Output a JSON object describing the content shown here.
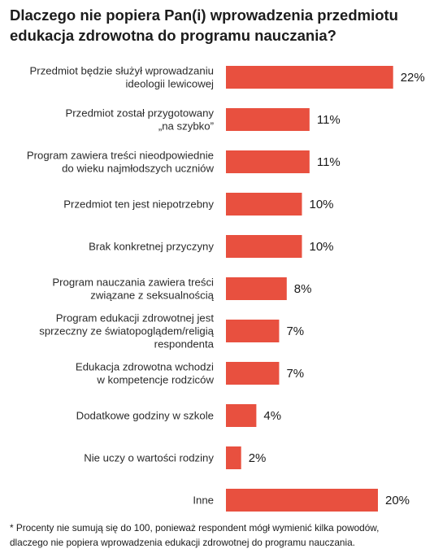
{
  "chart_data": {
    "type": "bar",
    "orientation": "horizontal",
    "title_lines": [
      "Dlaczego nie popiera Pan(i) wprowadzenia przedmiotu",
      "edukacja zdrowotna do programu nauczania?"
    ],
    "categories": [
      [
        "Przedmiot będzie służył wprowadzaniu",
        "ideologii lewicowej"
      ],
      [
        "Przedmiot został przygotowany",
        "„na szybko”"
      ],
      [
        "Program zawiera treści nieodpowiednie",
        "do wieku najmłodszych uczniów"
      ],
      [
        "Przedmiot ten jest niepotrzebny"
      ],
      [
        "Brak konkretnej przyczyny"
      ],
      [
        "Program nauczania zawiera treści",
        "związane  z seksualnością"
      ],
      [
        "Program edukacji zdrowotnej jest",
        "sprzeczny ze światopoglądem/religią",
        "respondenta"
      ],
      [
        "Edukacja zdrowotna wchodzi",
        "w kompetencje rodziców"
      ],
      [
        "Dodatkowe godziny w szkole"
      ],
      [
        "Nie uczy o wartości rodziny"
      ],
      [
        "Inne"
      ]
    ],
    "values": [
      22,
      11,
      11,
      10,
      10,
      8,
      7,
      7,
      4,
      2,
      20
    ],
    "value_labels": [
      "22%",
      "11%",
      "11%",
      "10%",
      "10%",
      "8%",
      "7%",
      "7%",
      "4%",
      "2%",
      "20%"
    ],
    "unit": "%",
    "bar_color": "#e8503f",
    "grid": false,
    "legend": "none"
  },
  "footnote_lines": [
    "* Procenty nie sumują się do 100, ponieważ respondent mógł wymienić kilka powodów,",
    "dlaczego nie popiera wprowadzenia edukacji zdrowotnej do programu nauczania."
  ]
}
